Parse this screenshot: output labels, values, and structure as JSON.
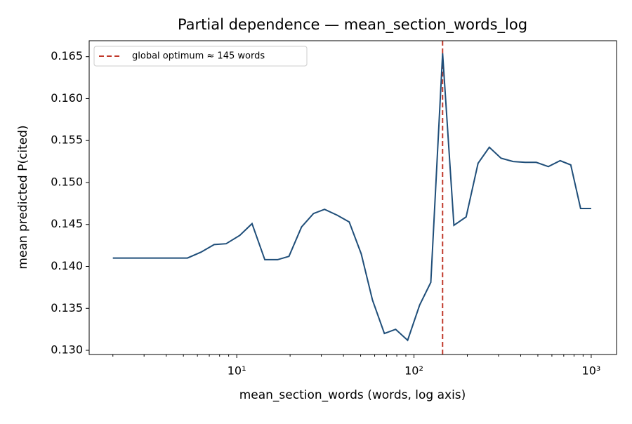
{
  "chart_data": {
    "type": "line",
    "title": "Partial dependence — mean_section_words_log",
    "xlabel": "mean_section_words (words, log axis)",
    "ylabel": "mean predicted P(cited)",
    "xscale": "log",
    "xlim": [
      1.47,
      1390
    ],
    "ylim": [
      0.1295,
      0.1669
    ],
    "xticks": [
      {
        "value": 10,
        "label": "10¹"
      },
      {
        "value": 100,
        "label": "10²"
      },
      {
        "value": 1000,
        "label": "10³"
      }
    ],
    "xminorticks": [
      2,
      3,
      4,
      5,
      6,
      7,
      8,
      9,
      20,
      30,
      40,
      50,
      60,
      70,
      80,
      90,
      200,
      300,
      400,
      500,
      600,
      700,
      800,
      900
    ],
    "yticks": [
      {
        "value": 0.13,
        "label": "0.130"
      },
      0.135,
      {
        "value": 0.14,
        "label": "0.140"
      },
      0.145,
      {
        "value": 0.15,
        "label": "0.150"
      },
      0.155,
      {
        "value": 0.16,
        "label": "0.160"
      },
      0.165
    ],
    "x": [
      2.0,
      2.75,
      3.79,
      5.27,
      6.28,
      7.46,
      8.71,
      10.4,
      12.2,
      14.4,
      17.0,
      19.7,
      23.2,
      27.1,
      31.3,
      36.9,
      43.1,
      50.4,
      58.3,
      68.1,
      78.8,
      92.1,
      107.6,
      124.5,
      145,
      168,
      197,
      230,
      266,
      310,
      363,
      424,
      490,
      573,
      668,
      767,
      871,
      1000
    ],
    "series": [
      {
        "color": "#1f4e79",
        "values": [
          0.141,
          0.141,
          0.141,
          0.141,
          0.1417,
          0.1426,
          0.1427,
          0.1437,
          0.1451,
          0.1408,
          0.1408,
          0.1412,
          0.1447,
          0.1463,
          0.1468,
          0.1461,
          0.1453,
          0.1415,
          0.136,
          0.132,
          0.1325,
          0.1312,
          0.1354,
          0.1381,
          0.1654,
          0.1449,
          0.1459,
          0.1523,
          0.1542,
          0.1529,
          0.1525,
          0.1524,
          0.1524,
          0.1519,
          0.1526,
          0.1521,
          0.1469,
          0.1469
        ]
      }
    ],
    "vlines": [
      {
        "x": 145,
        "label": "global optimum ≈ 145 words",
        "color": "#c0392b"
      }
    ],
    "legend": "upper left"
  }
}
